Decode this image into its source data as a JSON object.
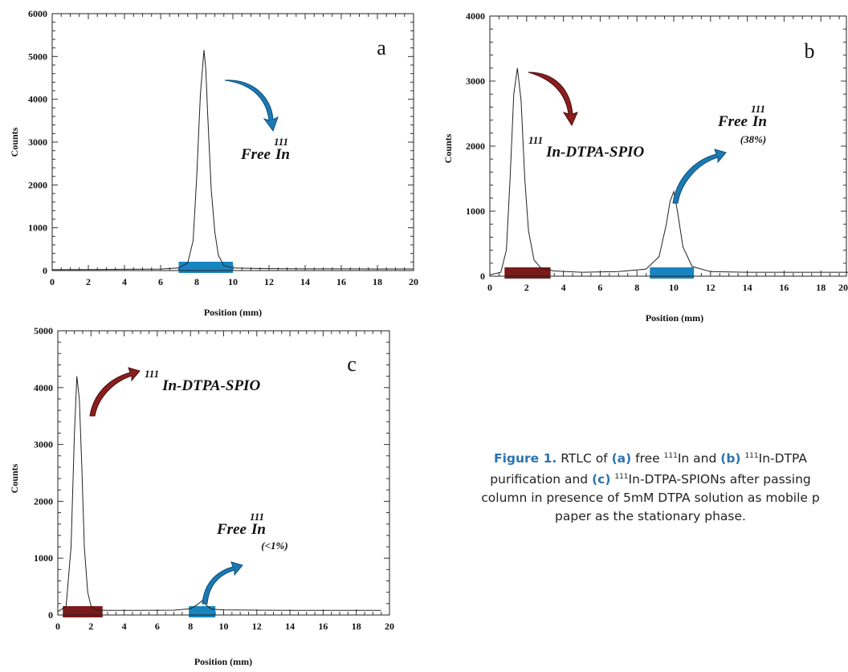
{
  "colors": {
    "region_red": "#7a1a1a",
    "region_blue": "#1a84c0",
    "arrow_blue": "#1c79b2",
    "arrow_red": "#8a1e1e",
    "caption_accent": "#2a73b0"
  },
  "chart_data": [
    {
      "id": "a",
      "type": "line",
      "panel_label": "a",
      "xlabel": "Position (mm)",
      "ylabel": "Counts",
      "xlim": [
        0,
        20
      ],
      "ylim": [
        0,
        6000
      ],
      "x_ticks": [
        "0",
        "2",
        "4",
        "6",
        "8",
        "10",
        "12",
        "14",
        "16",
        "18",
        "20"
      ],
      "y_ticks": [
        "0",
        "1000",
        "2000",
        "3000",
        "4000",
        "5000",
        "6000"
      ],
      "y_tick_values": [
        0,
        1000,
        2000,
        3000,
        4000,
        5000,
        6000
      ],
      "series": [
        {
          "x": [
            0,
            2,
            4,
            6,
            7,
            7.5,
            7.8,
            8,
            8.2,
            8.4,
            8.5,
            8.6,
            8.8,
            9,
            9.2,
            9.5,
            10,
            11,
            12,
            14,
            16,
            18,
            20
          ],
          "y": [
            20,
            25,
            30,
            35,
            60,
            180,
            700,
            2200,
            4100,
            5150,
            4700,
            3700,
            1900,
            900,
            350,
            120,
            60,
            50,
            45,
            40,
            40,
            38,
            38
          ]
        }
      ],
      "regions": [
        {
          "from": 7,
          "to": 10,
          "color": "blue"
        }
      ],
      "annotations": [
        {
          "pre_sup": "",
          "main": "Free",
          "sup": "111",
          "post": "In",
          "note": "",
          "arrow": "blue"
        }
      ]
    },
    {
      "id": "b",
      "type": "line",
      "panel_label": "b",
      "xlabel": "Position (mm)",
      "ylabel": "Counts",
      "xlim": [
        0,
        20
      ],
      "ylim": [
        0,
        4000
      ],
      "x_ticks": [
        "0",
        "2",
        "4",
        "6",
        "8",
        "10",
        "12",
        "14",
        "16",
        "18",
        "20"
      ],
      "y_ticks": [
        "0",
        "1000",
        "2000",
        "3000",
        "4000"
      ],
      "y_tick_values": [
        0,
        1000,
        2000,
        3000,
        4000
      ],
      "series": [
        {
          "x": [
            0,
            0.6,
            0.9,
            1.1,
            1.3,
            1.5,
            1.7,
            1.9,
            2.1,
            2.4,
            2.8,
            3.5,
            5,
            7,
            8.5,
            9.2,
            9.6,
            9.8,
            10,
            10.2,
            10.5,
            11,
            12,
            14,
            16,
            18,
            20
          ],
          "y": [
            20,
            60,
            400,
            1500,
            2800,
            3200,
            2700,
            1500,
            700,
            250,
            120,
            80,
            60,
            70,
            110,
            300,
            800,
            1150,
            1300,
            1000,
            450,
            150,
            70,
            60,
            60,
            60,
            60
          ]
        }
      ],
      "regions": [
        {
          "from": 0.8,
          "to": 3.3,
          "color": "red"
        },
        {
          "from": 8.7,
          "to": 11.1,
          "color": "blue"
        }
      ],
      "annotations": [
        {
          "pre_sup": "111",
          "main": "In-DTPA-SPIO",
          "sup": "",
          "post": "",
          "note": "",
          "arrow": "red"
        },
        {
          "pre_sup": "",
          "main": "Free",
          "sup": "111",
          "post": "In",
          "note": "(38%)",
          "arrow": "blue"
        }
      ]
    },
    {
      "id": "c",
      "type": "line",
      "panel_label": "c",
      "xlabel": "Position (mm)",
      "ylabel": "Counts",
      "xlim": [
        0,
        20
      ],
      "ylim": [
        0,
        5000
      ],
      "x_ticks": [
        "0",
        "2",
        "4",
        "6",
        "8",
        "10",
        "12",
        "14",
        "16",
        "18",
        "20"
      ],
      "y_ticks": [
        "0",
        "1000",
        "2000",
        "3000",
        "4000",
        "5000"
      ],
      "y_tick_values": [
        0,
        1000,
        2000,
        3000,
        4000,
        5000
      ],
      "series": [
        {
          "x": [
            0,
            0.5,
            0.8,
            1,
            1.15,
            1.3,
            1.45,
            1.6,
            1.8,
            2,
            2.3,
            3,
            5,
            7,
            8,
            8.4,
            8.7,
            9,
            9.3,
            10,
            12,
            14,
            16,
            18,
            19.5
          ],
          "y": [
            60,
            150,
            1200,
            3200,
            4200,
            3800,
            2600,
            1200,
            400,
            160,
            90,
            80,
            80,
            85,
            110,
            180,
            250,
            160,
            100,
            90,
            85,
            80,
            80,
            80,
            80
          ]
        }
      ],
      "regions": [
        {
          "from": 0.3,
          "to": 2.7,
          "color": "red"
        },
        {
          "from": 7.9,
          "to": 9.5,
          "color": "blue"
        }
      ],
      "annotations": [
        {
          "pre_sup": "111",
          "main": "In-DTPA-SPIO",
          "sup": "",
          "post": "",
          "note": "",
          "arrow": "red"
        },
        {
          "pre_sup": "",
          "main": "Free",
          "sup": "111",
          "post": "In",
          "note": "(<1%)",
          "arrow": "blue"
        }
      ]
    }
  ],
  "caption": {
    "figure_label": "Figure 1.",
    "t1": " RTLC of ",
    "l_a": "(a)",
    "t2": " free ",
    "sup1": "111",
    "t3": "In and ",
    "l_b": "(b)",
    "t4": " ",
    "sup2": "111",
    "t5": "In-DTPA",
    "t6": "purification and ",
    "l_c": "(c)",
    "t7": " ",
    "sup3": "111",
    "t8": "In-DTPA-SPIONs after passing",
    "line3": "column in presence of 5mM DTPA solution as mobile p",
    "line4": "paper as the stationary phase."
  }
}
